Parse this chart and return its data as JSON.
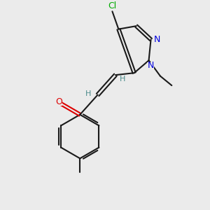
{
  "background_color": "#ebebeb",
  "bond_color": "#1a1a1a",
  "nitrogen_color": "#0000dd",
  "oxygen_color": "#dd0000",
  "chlorine_color": "#00aa00",
  "hydrogen_color": "#4a8a8a",
  "figsize": [
    3.0,
    3.0
  ],
  "dpi": 100,
  "xlim": [
    0,
    10
  ],
  "ylim": [
    0,
    10
  ]
}
